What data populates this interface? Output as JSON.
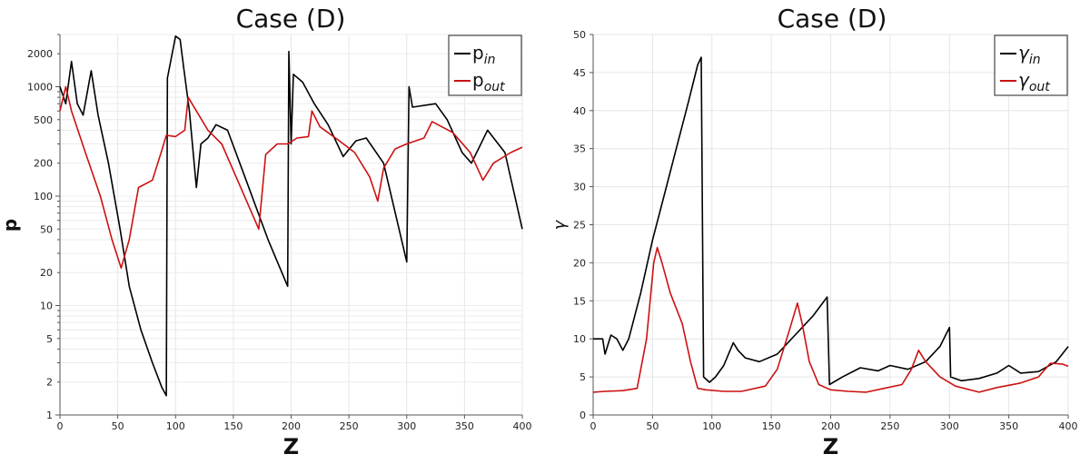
{
  "chart_data": [
    {
      "type": "line",
      "title": "Case (D)",
      "xlabel": "Z",
      "ylabel": "p",
      "xlim": [
        0,
        400
      ],
      "ylim": [
        1,
        3000
      ],
      "yscale": "log",
      "grid": true,
      "legend_position": "top-right",
      "x_ticks": [
        0,
        50,
        100,
        150,
        200,
        250,
        300,
        350,
        400
      ],
      "y_ticks": [
        1,
        2,
        5,
        10,
        20,
        50,
        100,
        200,
        500,
        1000,
        2000
      ],
      "series": [
        {
          "name": "p",
          "name_sub": "in",
          "color": "#000000",
          "points": [
            [
              0,
              1000
            ],
            [
              5,
              700
            ],
            [
              10,
              1700
            ],
            [
              15,
              700
            ],
            [
              20,
              550
            ],
            [
              27,
              1400
            ],
            [
              33,
              550
            ],
            [
              42,
              200
            ],
            [
              52,
              50
            ],
            [
              60,
              15
            ],
            [
              70,
              6
            ],
            [
              80,
              3
            ],
            [
              88,
              1.8
            ],
            [
              92,
              1.5
            ],
            [
              93,
              1200
            ],
            [
              100,
              2900
            ],
            [
              104,
              2700
            ],
            [
              107,
              1500
            ],
            [
              112,
              600
            ],
            [
              118,
              120
            ],
            [
              122,
              300
            ],
            [
              128,
              340
            ],
            [
              135,
              450
            ],
            [
              145,
              400
            ],
            [
              160,
              150
            ],
            [
              180,
              40
            ],
            [
              197,
              15
            ],
            [
              198,
              2100
            ],
            [
              200,
              300
            ],
            [
              202,
              1300
            ],
            [
              210,
              1100
            ],
            [
              220,
              700
            ],
            [
              232,
              450
            ],
            [
              245,
              230
            ],
            [
              256,
              320
            ],
            [
              265,
              340
            ],
            [
              280,
              200
            ],
            [
              300,
              25
            ],
            [
              302,
              1000
            ],
            [
              305,
              650
            ],
            [
              325,
              700
            ],
            [
              335,
              500
            ],
            [
              348,
              250
            ],
            [
              356,
              200
            ],
            [
              370,
              400
            ],
            [
              385,
              250
            ],
            [
              400,
              50
            ]
          ]
        },
        {
          "name": "p",
          "name_sub": "out",
          "color": "#cc1111",
          "points": [
            [
              0,
              600
            ],
            [
              5,
              1000
            ],
            [
              10,
              600
            ],
            [
              22,
              250
            ],
            [
              35,
              100
            ],
            [
              45,
              40
            ],
            [
              53,
              22
            ],
            [
              60,
              40
            ],
            [
              68,
              120
            ],
            [
              80,
              140
            ],
            [
              88,
              260
            ],
            [
              92,
              360
            ],
            [
              100,
              350
            ],
            [
              108,
              400
            ],
            [
              111,
              800
            ],
            [
              118,
              600
            ],
            [
              128,
              400
            ],
            [
              140,
              300
            ],
            [
              155,
              130
            ],
            [
              172,
              50
            ],
            [
              178,
              240
            ],
            [
              188,
              300
            ],
            [
              197,
              300
            ],
            [
              205,
              340
            ],
            [
              215,
              350
            ],
            [
              218,
              600
            ],
            [
              225,
              430
            ],
            [
              240,
              330
            ],
            [
              255,
              250
            ],
            [
              268,
              150
            ],
            [
              275,
              90
            ],
            [
              280,
              180
            ],
            [
              290,
              270
            ],
            [
              300,
              300
            ],
            [
              315,
              340
            ],
            [
              322,
              480
            ],
            [
              340,
              380
            ],
            [
              355,
              250
            ],
            [
              366,
              140
            ],
            [
              375,
              200
            ],
            [
              390,
              250
            ],
            [
              400,
              280
            ]
          ]
        }
      ]
    },
    {
      "type": "line",
      "title": "Case (D)",
      "xlabel": "Z",
      "ylabel": "γ",
      "xlim": [
        0,
        400
      ],
      "ylim": [
        0,
        50
      ],
      "grid": true,
      "legend_position": "top-right",
      "x_ticks": [
        0,
        50,
        100,
        150,
        200,
        250,
        300,
        350,
        400
      ],
      "y_ticks": [
        0,
        5,
        10,
        15,
        20,
        25,
        30,
        35,
        40,
        45,
        50
      ],
      "series": [
        {
          "name": "γ",
          "name_sub": "in",
          "color": "#000000",
          "points": [
            [
              0,
              10
            ],
            [
              8,
              10
            ],
            [
              10,
              8
            ],
            [
              15,
              10.5
            ],
            [
              20,
              10
            ],
            [
              25,
              8.5
            ],
            [
              30,
              10
            ],
            [
              40,
              16
            ],
            [
              50,
              23
            ],
            [
              60,
              29
            ],
            [
              70,
              35
            ],
            [
              80,
              41
            ],
            [
              88,
              46
            ],
            [
              91,
              47
            ],
            [
              93,
              5
            ],
            [
              98,
              4.3
            ],
            [
              103,
              5
            ],
            [
              110,
              6.5
            ],
            [
              118,
              9.5
            ],
            [
              122,
              8.5
            ],
            [
              128,
              7.5
            ],
            [
              140,
              7
            ],
            [
              155,
              8
            ],
            [
              170,
              10.5
            ],
            [
              185,
              13
            ],
            [
              197,
              15.5
            ],
            [
              199,
              4
            ],
            [
              210,
              5
            ],
            [
              225,
              6.2
            ],
            [
              240,
              5.8
            ],
            [
              250,
              6.5
            ],
            [
              265,
              6
            ],
            [
              280,
              7
            ],
            [
              292,
              9
            ],
            [
              300,
              11.5
            ],
            [
              301,
              5
            ],
            [
              310,
              4.5
            ],
            [
              325,
              4.8
            ],
            [
              340,
              5.5
            ],
            [
              350,
              6.5
            ],
            [
              360,
              5.5
            ],
            [
              375,
              5.7
            ],
            [
              390,
              7
            ],
            [
              400,
              9
            ]
          ]
        },
        {
          "name": "γ",
          "name_sub": "out",
          "color": "#cc1111",
          "points": [
            [
              0,
              3
            ],
            [
              10,
              3.1
            ],
            [
              25,
              3.2
            ],
            [
              37,
              3.5
            ],
            [
              45,
              10
            ],
            [
              51,
              20
            ],
            [
              54,
              22
            ],
            [
              58,
              20
            ],
            [
              65,
              16
            ],
            [
              75,
              12
            ],
            [
              82,
              7
            ],
            [
              88,
              3.5
            ],
            [
              95,
              3.3
            ],
            [
              110,
              3.1
            ],
            [
              125,
              3.1
            ],
            [
              145,
              3.8
            ],
            [
              155,
              6
            ],
            [
              165,
              11
            ],
            [
              172,
              14.7
            ],
            [
              176,
              12
            ],
            [
              182,
              7
            ],
            [
              190,
              4
            ],
            [
              200,
              3.3
            ],
            [
              215,
              3.1
            ],
            [
              230,
              3
            ],
            [
              245,
              3.5
            ],
            [
              260,
              4
            ],
            [
              268,
              6
            ],
            [
              274,
              8.5
            ],
            [
              280,
              7
            ],
            [
              292,
              5
            ],
            [
              305,
              3.8
            ],
            [
              325,
              3
            ],
            [
              340,
              3.6
            ],
            [
              360,
              4.2
            ],
            [
              375,
              5
            ],
            [
              385,
              6.8
            ],
            [
              395,
              6.7
            ],
            [
              400,
              6.4
            ]
          ]
        }
      ]
    }
  ]
}
